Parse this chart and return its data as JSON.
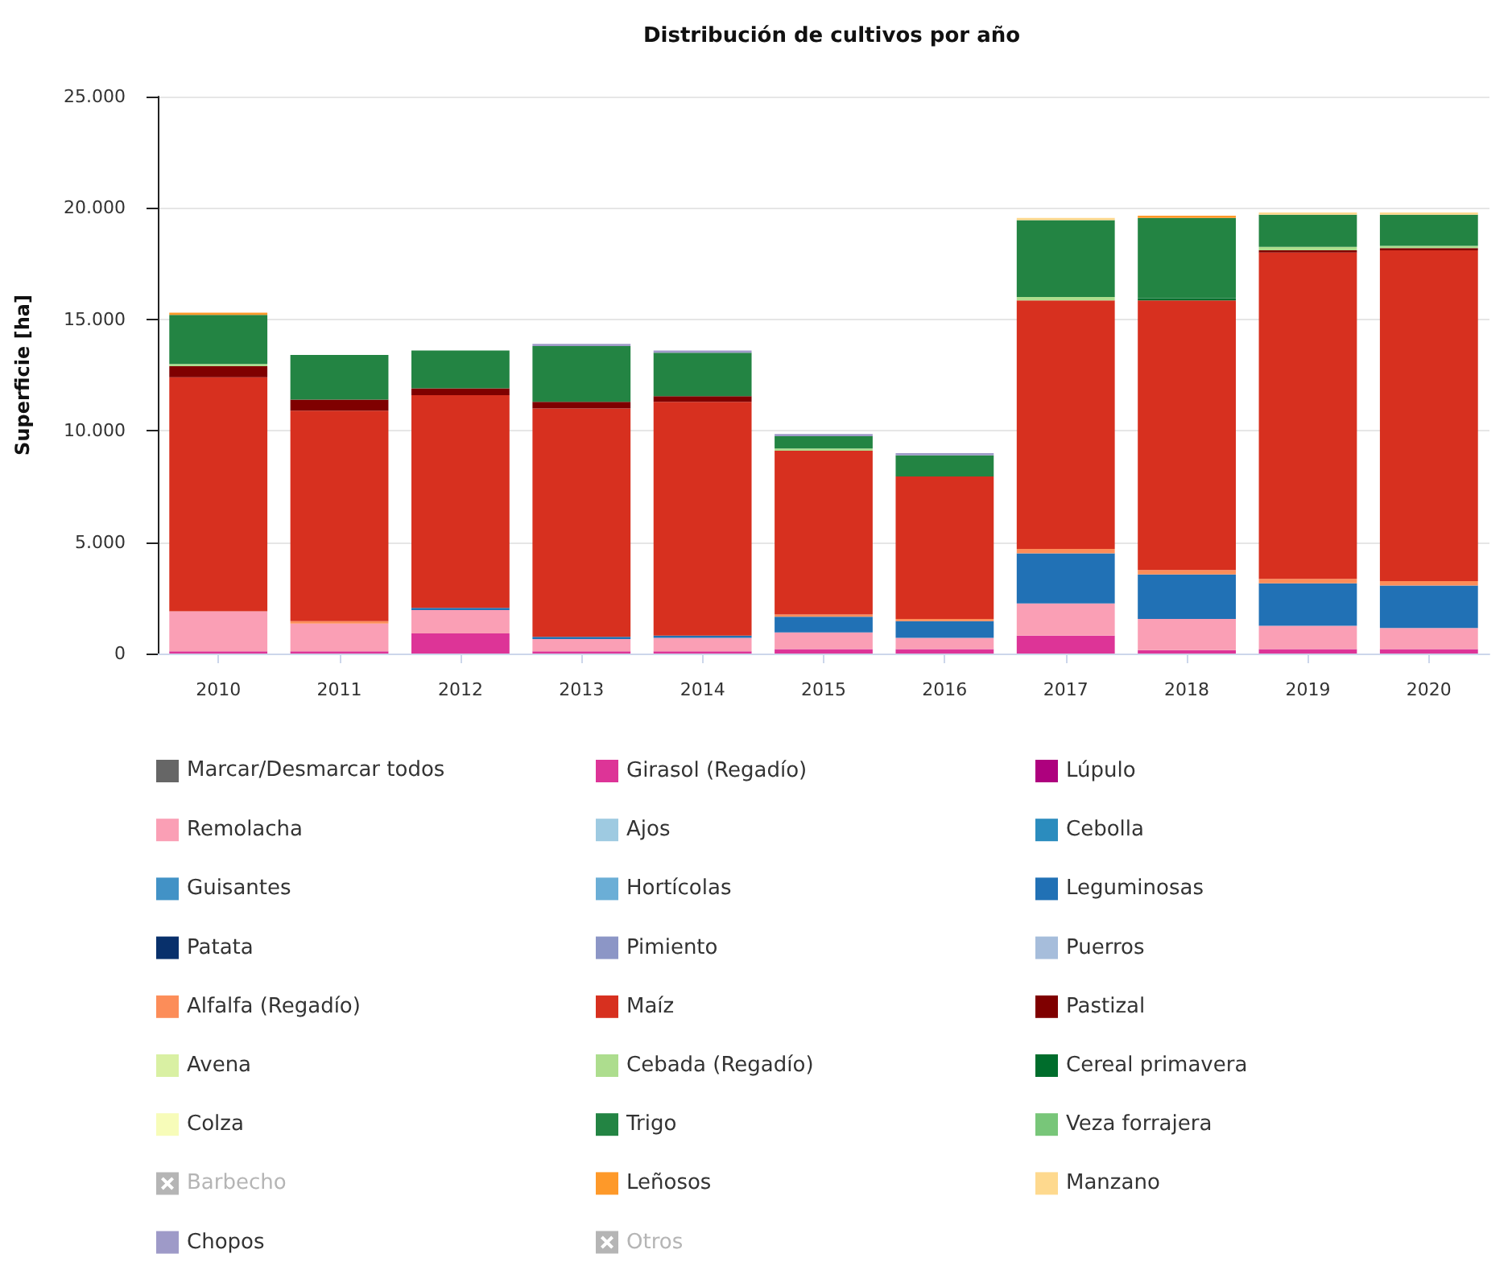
{
  "chart_data": {
    "type": "bar",
    "title": "Distribución de cultivos por año",
    "ylabel": "Superficie [ha]",
    "categories": [
      "2010",
      "2011",
      "2012",
      "2013",
      "2014",
      "2015",
      "2016",
      "2017",
      "2018",
      "2019",
      "2020"
    ],
    "stacked": true,
    "ylim": [
      0,
      25000
    ],
    "yticks": [
      0,
      {
        "value": 5000,
        "label": "5.000"
      },
      {
        "value": 10000,
        "label": "10.000"
      },
      {
        "value": 15000,
        "label": "15.000"
      },
      {
        "value": 20000,
        "label": "20.000"
      },
      {
        "value": 25000,
        "label": "25.000"
      }
    ],
    "grid": "y",
    "legend": "bottom",
    "annotations": [
      "Marcar/Desmarcar todos"
    ],
    "series": [
      {
        "name": "Girasol (Regadío)",
        "color": "#dd3497",
        "values": [
          100,
          100,
          900,
          100,
          100,
          200,
          200,
          800,
          150,
          200,
          200
        ]
      },
      {
        "name": "Lúpulo",
        "color": "#ae017e",
        "values": [
          null,
          null,
          null,
          null,
          null,
          null,
          null,
          null,
          null,
          null,
          null
        ]
      },
      {
        "name": "Remolacha",
        "color": "#fa9fb5",
        "values": [
          1800,
          1250,
          1050,
          550,
          600,
          750,
          500,
          1450,
          1400,
          1050,
          950
        ]
      },
      {
        "name": "Ajos",
        "color": "#9ecae1",
        "values": [
          null,
          null,
          null,
          null,
          null,
          null,
          null,
          null,
          null,
          null,
          null
        ]
      },
      {
        "name": "Cebolla",
        "color": "#2b8cbe",
        "values": [
          null,
          null,
          null,
          null,
          null,
          null,
          null,
          null,
          null,
          null,
          null
        ]
      },
      {
        "name": "Guisantes",
        "color": "#4292c6",
        "values": [
          null,
          null,
          null,
          null,
          null,
          null,
          null,
          null,
          null,
          null,
          null
        ]
      },
      {
        "name": "Hortícolas",
        "color": "#6baed6",
        "values": [
          null,
          null,
          null,
          null,
          null,
          null,
          null,
          null,
          null,
          null,
          null
        ]
      },
      {
        "name": "Leguminosas",
        "color": "#2171b5",
        "values": [
          null,
          null,
          100,
          100,
          100,
          700,
          750,
          2250,
          2000,
          1900,
          1900
        ]
      },
      {
        "name": "Patata",
        "color": "#08306b",
        "values": [
          null,
          null,
          null,
          null,
          null,
          null,
          null,
          null,
          null,
          null,
          null
        ]
      },
      {
        "name": "Pimiento",
        "color": "#8c96c6",
        "values": [
          null,
          null,
          null,
          null,
          null,
          null,
          null,
          null,
          null,
          null,
          null
        ]
      },
      {
        "name": "Puerros",
        "color": "#a6bddb",
        "values": [
          null,
          null,
          null,
          null,
          null,
          null,
          null,
          null,
          null,
          null,
          null
        ]
      },
      {
        "name": "Alfalfa (Regadío)",
        "color": "#fc8d59",
        "values": [
          null,
          100,
          null,
          null,
          null,
          100,
          100,
          200,
          200,
          200,
          200
        ]
      },
      {
        "name": "Maíz",
        "color": "#d7301f",
        "values": [
          10500,
          9450,
          9550,
          10250,
          10500,
          7350,
          6400,
          11150,
          12100,
          14650,
          14850
        ]
      },
      {
        "name": "Pastizal",
        "color": "#7f0000",
        "values": [
          500,
          500,
          300,
          300,
          250,
          null,
          null,
          null,
          null,
          100,
          100
        ]
      },
      {
        "name": "Avena",
        "color": "#d9f0a3",
        "values": [
          null,
          null,
          null,
          null,
          null,
          null,
          null,
          null,
          null,
          null,
          null
        ]
      },
      {
        "name": "Cebada (Regadío)",
        "color": "#addd8e",
        "values": [
          100,
          null,
          null,
          null,
          null,
          100,
          null,
          150,
          null,
          150,
          100
        ]
      },
      {
        "name": "Cereal primavera",
        "color": "#006d2c",
        "values": [
          null,
          null,
          null,
          null,
          null,
          null,
          null,
          null,
          100,
          null,
          null
        ]
      },
      {
        "name": "Colza",
        "color": "#f7fcb9",
        "values": [
          null,
          null,
          null,
          null,
          null,
          null,
          null,
          null,
          null,
          null,
          null
        ]
      },
      {
        "name": "Trigo",
        "color": "#238443",
        "values": [
          2200,
          2000,
          1700,
          2500,
          1950,
          550,
          950,
          3450,
          3600,
          1450,
          1400
        ]
      },
      {
        "name": "Veza forrajera",
        "color": "#78c679",
        "values": [
          null,
          null,
          null,
          null,
          null,
          null,
          null,
          null,
          null,
          null,
          null
        ]
      },
      {
        "name": "Barbecho",
        "values": [
          null,
          null,
          null,
          null,
          null,
          null,
          null,
          null,
          null,
          null,
          null
        ]
      },
      {
        "name": "Leñosos",
        "color": "#fe9929",
        "values": [
          100,
          null,
          null,
          null,
          null,
          null,
          null,
          null,
          100,
          null,
          null
        ]
      },
      {
        "name": "Manzano",
        "color": "#fed98e",
        "values": [
          null,
          null,
          null,
          null,
          null,
          null,
          null,
          100,
          null,
          100,
          100
        ]
      },
      {
        "name": "Chopos",
        "color": "#9e9ac8",
        "values": [
          null,
          null,
          null,
          100,
          100,
          100,
          100,
          null,
          null,
          null,
          null
        ]
      },
      {
        "name": "Otros",
        "values": [
          null,
          null,
          null,
          null,
          null,
          null,
          null,
          null,
          null,
          null,
          null
        ]
      }
    ]
  }
}
